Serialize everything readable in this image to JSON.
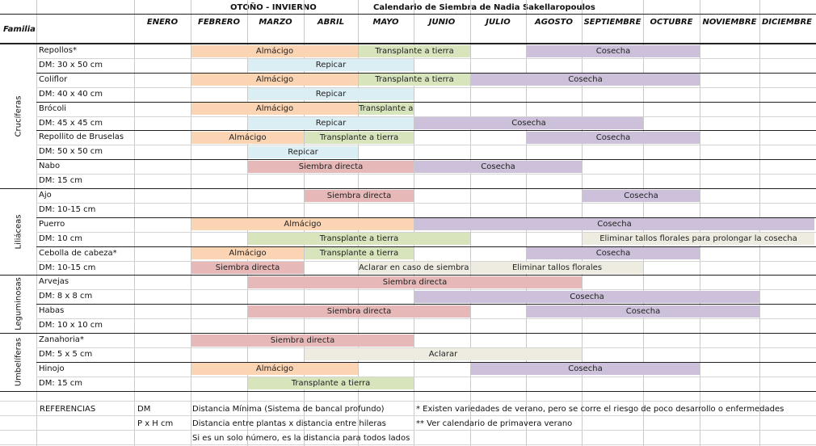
{
  "header": {
    "season": "OTOÑO - INVIERNO",
    "title": "Calendario de Siembra de Nadia Sakellaropoulos",
    "familia_label": "Familia"
  },
  "months": [
    "ENERO",
    "FEBRERO",
    "MARZO",
    "ABRIL",
    "MAYO",
    "JUNIO",
    "JULIO",
    "AGOSTO",
    "SEPTIEMBRE",
    "OCTUBRE",
    "NOVIEMBRE",
    "DICIEMBRE"
  ],
  "colors": {
    "almacigo": "#fbd4b4",
    "transplante": "#d7e4bc",
    "cosecha": "#ccc0da",
    "repicar": "#dbeef4",
    "siembra": "#e6b9b8",
    "aclarar": "#eeece1",
    "eliminar": "#ebf1de"
  },
  "families": [
    {
      "name": "Crucíferas",
      "row_start": 0,
      "row_count": 10
    },
    {
      "name": "Liliáceas",
      "row_start": 10,
      "row_count": 6
    },
    {
      "name": "Leguminosas",
      "row_start": 16,
      "row_count": 4
    },
    {
      "name": "Umbelíferas",
      "row_start": 20,
      "row_count": 4
    }
  ],
  "rows": [
    {
      "label": "Repollos*",
      "bars": [
        {
          "text": "Almácigo",
          "start": 1,
          "end": 4,
          "color": "almacigo"
        },
        {
          "text": "Transplante a tierra",
          "start": 4,
          "end": 6,
          "color": "transplante"
        },
        {
          "text": "Cosecha",
          "start": 7,
          "end": 10,
          "color": "cosecha"
        }
      ]
    },
    {
      "label": "DM:  30 x 50 cm",
      "bars": [
        {
          "text": "Repicar",
          "start": 2,
          "end": 5,
          "color": "repicar"
        }
      ]
    },
    {
      "label": "Coliflor",
      "bars": [
        {
          "text": "Almácigo",
          "start": 1,
          "end": 4,
          "color": "almacigo"
        },
        {
          "text": "Transplante a tierra",
          "start": 4,
          "end": 6,
          "color": "transplante"
        },
        {
          "text": "Cosecha",
          "start": 6,
          "end": 10,
          "color": "cosecha"
        }
      ]
    },
    {
      "label": "DM: 40 x 40 cm",
      "bars": [
        {
          "text": "Repicar",
          "start": 2,
          "end": 5,
          "color": "repicar"
        }
      ]
    },
    {
      "label": "Brócoli",
      "bars": [
        {
          "text": "Almácigo",
          "start": 1,
          "end": 4,
          "color": "almacigo"
        },
        {
          "text": "Transplante a tierra",
          "start": 4,
          "end": 5,
          "color": "transplante"
        }
      ]
    },
    {
      "label": "DM: 45 x 45 cm",
      "bars": [
        {
          "text": "Repicar",
          "start": 2,
          "end": 5,
          "color": "repicar"
        },
        {
          "text": "Cosecha",
          "start": 5,
          "end": 9,
          "color": "cosecha"
        }
      ]
    },
    {
      "label": "Repollito de Bruselas",
      "bars": [
        {
          "text": "Almácigo",
          "start": 1,
          "end": 3,
          "color": "almacigo"
        },
        {
          "text": "Transplante a tierra",
          "start": 3,
          "end": 5,
          "color": "transplante"
        },
        {
          "text": "Cosecha",
          "start": 7,
          "end": 10,
          "color": "cosecha"
        }
      ]
    },
    {
      "label": "DM: 50 x 50 cm",
      "bars": [
        {
          "text": "Repicar",
          "start": 2,
          "end": 4,
          "color": "repicar"
        }
      ]
    },
    {
      "label": "Nabo",
      "bars": [
        {
          "text": "Siembra directa",
          "start": 2,
          "end": 5,
          "color": "siembra"
        },
        {
          "text": "Cosecha",
          "start": 5,
          "end": 8,
          "color": "cosecha"
        }
      ]
    },
    {
      "label": "DM: 15 cm",
      "bars": []
    },
    {
      "label": "Ajo",
      "bars": [
        {
          "text": "Siembra directa",
          "start": 3,
          "end": 5,
          "color": "siembra"
        },
        {
          "text": "Cosecha",
          "start": 8,
          "end": 10,
          "color": "cosecha"
        }
      ]
    },
    {
      "label": "DM: 10-15 cm",
      "bars": []
    },
    {
      "label": "Puerro",
      "bars": [
        {
          "text": "Almácigo",
          "start": 1,
          "end": 5,
          "color": "almacigo"
        },
        {
          "text": "Cosecha",
          "start": 5,
          "end": 12,
          "color": "cosecha"
        }
      ]
    },
    {
      "label": "DM: 10 cm",
      "bars": [
        {
          "text": "Transplante a tierra",
          "start": 2,
          "end": 6,
          "color": "transplante"
        },
        {
          "text": "Eliminar tallos florales para prolongar la cosecha",
          "start": 8,
          "end": 12,
          "color": "aclarar"
        }
      ]
    },
    {
      "label": "Cebolla de cabeza*",
      "bars": [
        {
          "text": "Almácigo",
          "start": 1,
          "end": 3,
          "color": "almacigo"
        },
        {
          "text": "Transplante a tierra",
          "start": 3,
          "end": 5,
          "color": "transplante"
        },
        {
          "text": "Cosecha",
          "start": 7,
          "end": 10,
          "color": "cosecha"
        }
      ]
    },
    {
      "label": "DM: 10-15 cm",
      "bars": [
        {
          "text": "Siembra directa",
          "start": 1,
          "end": 3,
          "color": "siembra"
        },
        {
          "text": "Aclarar en caso de siembra directa",
          "start": 4,
          "end": 6,
          "color": "aclarar"
        },
        {
          "text": "Eliminar tallos florales",
          "start": 6,
          "end": 9,
          "color": "aclarar"
        }
      ]
    },
    {
      "label": "Arvejas",
      "bars": [
        {
          "text": "Siembra directa",
          "start": 2,
          "end": 8,
          "color": "siembra"
        }
      ]
    },
    {
      "label": "DM: 8 x 8 cm",
      "bars": [
        {
          "text": "Cosecha",
          "start": 5,
          "end": 11,
          "color": "cosecha"
        }
      ]
    },
    {
      "label": "Habas",
      "bars": [
        {
          "text": "Siembra directa",
          "start": 2,
          "end": 6,
          "color": "siembra"
        },
        {
          "text": "Cosecha",
          "start": 7,
          "end": 11,
          "color": "cosecha"
        }
      ]
    },
    {
      "label": "DM: 10 x 10 cm",
      "bars": []
    },
    {
      "label": "Zanahoria*",
      "bars": [
        {
          "text": "Siembra directa",
          "start": 1,
          "end": 5,
          "color": "siembra"
        }
      ]
    },
    {
      "label": "DM: 5 x 5 cm",
      "bars": [
        {
          "text": "Aclarar",
          "start": 3,
          "end": 8,
          "color": "aclarar"
        }
      ]
    },
    {
      "label": "Hinojo",
      "bars": [
        {
          "text": "Almácigo",
          "start": 1,
          "end": 4,
          "color": "almacigo"
        },
        {
          "text": "Cosecha",
          "start": 6,
          "end": 10,
          "color": "cosecha"
        }
      ]
    },
    {
      "label": "DM: 15 cm",
      "bars": [
        {
          "text": "Transplante a tierra",
          "start": 2,
          "end": 5,
          "color": "transplante"
        }
      ]
    }
  ],
  "references": {
    "label": "REFERENCIAS",
    "items": [
      {
        "code": "DM",
        "text": "Distancia Mínima (Sistema de bancal profundo)",
        "note": "* Existen variedades de verano, pero se corre el riesgo de poco desarrollo o enfermedades"
      },
      {
        "code": "P x H cm",
        "text": "Distancia entre plantas x distancia entre hileras",
        "note": "** Ver calendario de primavera verano"
      },
      {
        "code": "",
        "text": "Si es un solo número, es la distancia para todos lados",
        "note": ""
      }
    ]
  }
}
